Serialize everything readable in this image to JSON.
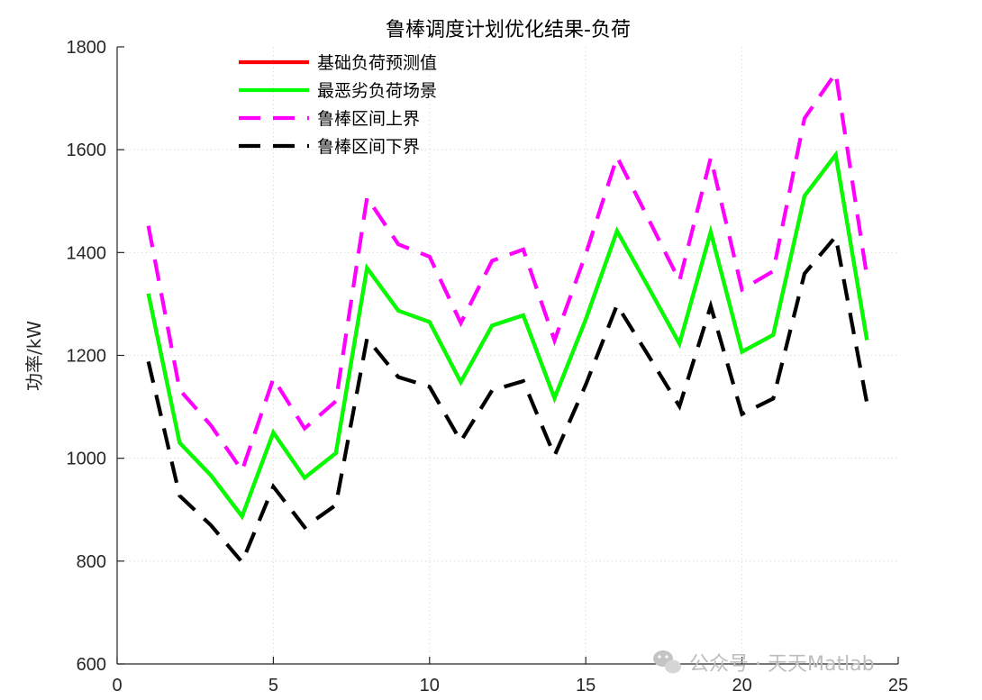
{
  "chart_data": {
    "type": "line",
    "title": "鲁棒调度计划优化结果-负荷",
    "xlabel": "",
    "ylabel": "功率/kW",
    "xlim": [
      0,
      25
    ],
    "ylim": [
      600,
      1800
    ],
    "xticks": [
      0,
      5,
      10,
      15,
      20,
      25
    ],
    "yticks": [
      600,
      800,
      1000,
      1200,
      1400,
      1600,
      1800
    ],
    "grid": true,
    "legend_position": "top-center",
    "x": [
      1,
      2,
      3,
      4,
      5,
      6,
      7,
      8,
      9,
      10,
      11,
      12,
      13,
      14,
      15,
      16,
      17,
      18,
      19,
      20,
      21,
      22,
      23,
      24
    ],
    "series": [
      {
        "name": "基础负荷预测值",
        "color": "#ff0000",
        "style": "solid",
        "values": [
          1320,
          1030,
          967,
          887,
          1050,
          962,
          1010,
          1370,
          1287,
          1265,
          1148,
          1258,
          1278,
          1117,
          1270,
          1442,
          1333,
          1223,
          1440,
          1207,
          1240,
          1510,
          1590,
          1230
        ]
      },
      {
        "name": "最恶劣负荷场景",
        "color": "#00ff00",
        "style": "solid",
        "values": [
          1320,
          1030,
          967,
          887,
          1050,
          962,
          1010,
          1370,
          1287,
          1265,
          1148,
          1258,
          1278,
          1117,
          1270,
          1442,
          1333,
          1223,
          1440,
          1207,
          1240,
          1510,
          1590,
          1230
        ]
      },
      {
        "name": "鲁棒区间上界",
        "color": "#ff00ff",
        "style": "dashed",
        "values": [
          1452,
          1133,
          1064,
          976,
          1155,
          1058,
          1111,
          1507,
          1416,
          1392,
          1263,
          1384,
          1406,
          1229,
          1397,
          1586,
          1466,
          1345,
          1584,
          1328,
          1364,
          1661,
          1749,
          1353
        ]
      },
      {
        "name": "鲁棒区间下界",
        "color": "#000000",
        "style": "dashed",
        "values": [
          1188,
          927,
          870,
          798,
          945,
          866,
          909,
          1233,
          1158,
          1139,
          1033,
          1132,
          1150,
          1005,
          1143,
          1298,
          1200,
          1101,
          1296,
          1086,
          1116,
          1359,
          1431,
          1107
        ]
      }
    ]
  },
  "watermark": {
    "text": "公众号 · 天天Matlab",
    "icon": "wechat-icon"
  }
}
